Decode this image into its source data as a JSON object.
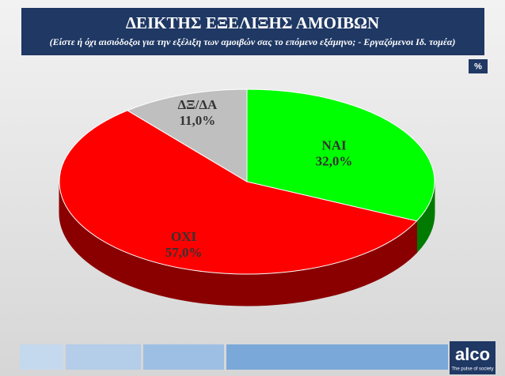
{
  "chart_data": {
    "type": "pie",
    "title": "ΔΕΙΚΤΗΣ ΕΞΕΛΙΞΗΣ ΑΜΟΙΒΩΝ",
    "subtitle": "(Είστε ή όχι αισιόδοξοι για την εξέλιξη των αμοιβών σας το επόμενο εξάμηνο; - Εργαζόμενοι Ιδ. τομέα)",
    "badge": "%",
    "categories": [
      "ΝΑΙ",
      "ΟΧΙ",
      "ΔΞ/ΔΑ"
    ],
    "values": [
      32,
      57,
      11
    ],
    "value_labels": [
      "32,0%",
      "57,0%",
      "11,0%"
    ],
    "colors": [
      "#00ff00",
      "#ff0000",
      "#bfbfbf"
    ],
    "side_colors": [
      "#007a00",
      "#8a0000",
      "#7f7f7f"
    ]
  },
  "logo": {
    "name": "alco",
    "tagline": "The pulse of society"
  }
}
